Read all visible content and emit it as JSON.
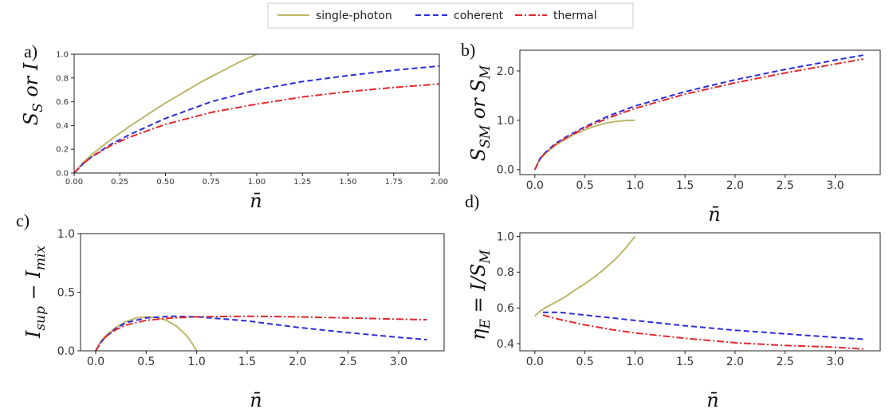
{
  "legend": {
    "entries": [
      {
        "label": "single-photon",
        "color": "#bdb76b",
        "dash": "solid"
      },
      {
        "label": "coherent",
        "color": "#2c2cd8",
        "dash": "dashed"
      },
      {
        "label": "thermal",
        "color": "#e0282e",
        "dash": "dashdot"
      }
    ]
  },
  "chart_data": [
    {
      "panel": "a)",
      "type": "line",
      "ylabel_main": "S",
      "ylabel_sub": "S",
      "ylabel_tail": " or I",
      "xlabel": "n̄",
      "xlim": [
        0,
        2
      ],
      "ylim": [
        0,
        1
      ],
      "xticks": [
        0,
        0.25,
        0.5,
        0.75,
        1.0,
        1.25,
        1.5,
        1.75,
        2.0
      ],
      "xtick_labels": [
        "0.00",
        "0.25",
        "0.50",
        "0.75",
        "1.00",
        "1.25",
        "1.50",
        "1.75",
        "2.00"
      ],
      "yticks": [
        0,
        0.2,
        0.4,
        0.6,
        0.8,
        1.0
      ],
      "ytick_labels": [
        "0.0",
        "0.2",
        "0.4",
        "0.6",
        "0.8",
        "1.0"
      ],
      "series": [
        {
          "name": "single-photon",
          "x": [
            0,
            0.05,
            0.1,
            0.2,
            0.3,
            0.4,
            0.5,
            0.6,
            0.7,
            0.8,
            0.9,
            1.0
          ],
          "y": [
            0,
            0.09,
            0.16,
            0.28,
            0.39,
            0.49,
            0.59,
            0.68,
            0.77,
            0.85,
            0.93,
            1.0
          ]
        },
        {
          "name": "coherent",
          "x": [
            0,
            0.05,
            0.1,
            0.2,
            0.3,
            0.5,
            0.75,
            1.0,
            1.25,
            1.5,
            1.75,
            2.0
          ],
          "y": [
            0,
            0.08,
            0.14,
            0.24,
            0.32,
            0.46,
            0.6,
            0.7,
            0.77,
            0.82,
            0.865,
            0.9
          ]
        },
        {
          "name": "thermal",
          "x": [
            0,
            0.05,
            0.1,
            0.2,
            0.3,
            0.5,
            0.75,
            1.0,
            1.25,
            1.5,
            1.75,
            2.0
          ],
          "y": [
            0,
            0.08,
            0.14,
            0.23,
            0.3,
            0.41,
            0.51,
            0.58,
            0.64,
            0.685,
            0.72,
            0.75
          ]
        }
      ]
    },
    {
      "panel": "b)",
      "type": "line",
      "ylabel_main": "S",
      "ylabel_sub": "SM",
      "ylabel_tail": " or S",
      "ylabel_sub2": "M",
      "xlabel": "n̄",
      "xlim": [
        -0.15,
        3.45
      ],
      "ylim": [
        -0.1,
        2.42
      ],
      "xticks": [
        0,
        0.5,
        1.0,
        1.5,
        2.0,
        2.5,
        3.0
      ],
      "xtick_labels": [
        "0.0",
        "0.5",
        "1.0",
        "1.5",
        "2.0",
        "2.5",
        "3.0"
      ],
      "yticks": [
        0,
        1.0,
        2.0
      ],
      "ytick_labels": [
        "0.0",
        "1.0",
        "2.0"
      ],
      "series": [
        {
          "name": "single-photon",
          "x": [
            0,
            0.05,
            0.1,
            0.2,
            0.3,
            0.4,
            0.5,
            0.6,
            0.7,
            0.8,
            0.9,
            1.0
          ],
          "y": [
            0,
            0.21,
            0.32,
            0.49,
            0.61,
            0.72,
            0.81,
            0.88,
            0.94,
            0.975,
            0.995,
            1.0
          ]
        },
        {
          "name": "coherent",
          "x": [
            0,
            0.05,
            0.1,
            0.2,
            0.3,
            0.5,
            0.75,
            1.0,
            1.5,
            2.0,
            2.5,
            3.0,
            3.28
          ],
          "y": [
            0,
            0.22,
            0.34,
            0.52,
            0.65,
            0.87,
            1.1,
            1.29,
            1.58,
            1.82,
            2.03,
            2.22,
            2.32
          ]
        },
        {
          "name": "thermal",
          "x": [
            0,
            0.05,
            0.1,
            0.2,
            0.3,
            0.5,
            0.75,
            1.0,
            1.5,
            2.0,
            2.5,
            3.0,
            3.28
          ],
          "y": [
            0,
            0.22,
            0.33,
            0.5,
            0.63,
            0.85,
            1.06,
            1.24,
            1.53,
            1.76,
            1.96,
            2.14,
            2.24
          ]
        }
      ]
    },
    {
      "panel": "c)",
      "type": "line",
      "ylabel_main": "I",
      "ylabel_sub": "sup",
      "ylabel_tail": " − I",
      "ylabel_sub2": "mix",
      "xlabel": "n̄",
      "xlim": [
        -0.15,
        3.45
      ],
      "ylim": [
        0,
        1
      ],
      "xticks": [
        0,
        0.5,
        1.0,
        1.5,
        2.0,
        2.5,
        3.0
      ],
      "xtick_labels": [
        "0.0",
        "0.5",
        "1.0",
        "1.5",
        "2.0",
        "2.5",
        "3.0"
      ],
      "yticks": [
        0,
        0.5,
        1.0
      ],
      "ytick_labels": [
        "0.0",
        "0.5",
        "1.0"
      ],
      "series": [
        {
          "name": "single-photon",
          "x": [
            0,
            0.05,
            0.1,
            0.2,
            0.3,
            0.4,
            0.5,
            0.6,
            0.7,
            0.8,
            0.9,
            0.95,
            1.0
          ],
          "y": [
            0,
            0.08,
            0.13,
            0.2,
            0.25,
            0.28,
            0.29,
            0.285,
            0.26,
            0.21,
            0.13,
            0.07,
            0
          ]
        },
        {
          "name": "coherent",
          "x": [
            0,
            0.05,
            0.1,
            0.2,
            0.3,
            0.5,
            0.75,
            1.0,
            1.5,
            2.0,
            2.5,
            3.0,
            3.28
          ],
          "y": [
            0,
            0.07,
            0.12,
            0.19,
            0.24,
            0.28,
            0.295,
            0.29,
            0.255,
            0.2,
            0.155,
            0.115,
            0.095
          ]
        },
        {
          "name": "thermal",
          "x": [
            0,
            0.05,
            0.1,
            0.2,
            0.3,
            0.5,
            0.75,
            1.0,
            1.5,
            2.0,
            2.5,
            3.0,
            3.28
          ],
          "y": [
            0,
            0.07,
            0.12,
            0.18,
            0.22,
            0.26,
            0.28,
            0.29,
            0.295,
            0.29,
            0.28,
            0.27,
            0.265
          ]
        }
      ]
    },
    {
      "panel": "d)",
      "type": "line",
      "ylabel_main": "η",
      "ylabel_sub": "E",
      "ylabel_tail": " = I/S",
      "ylabel_sub2": "M",
      "xlabel": "n̄",
      "xlim": [
        -0.15,
        3.45
      ],
      "ylim": [
        0.36,
        1.02
      ],
      "xticks": [
        0,
        0.5,
        1.0,
        1.5,
        2.0,
        2.5,
        3.0
      ],
      "xtick_labels": [
        "0.0",
        "0.5",
        "1.0",
        "1.5",
        "2.0",
        "2.5",
        "3.0"
      ],
      "yticks": [
        0.4,
        0.6,
        0.8,
        1.0
      ],
      "ytick_labels": [
        "0.4",
        "0.6",
        "0.8",
        "1.0"
      ],
      "series": [
        {
          "name": "single-photon",
          "x": [
            0,
            0.05,
            0.1,
            0.2,
            0.3,
            0.4,
            0.5,
            0.6,
            0.7,
            0.8,
            0.9,
            1.0
          ],
          "y": [
            0.555,
            0.58,
            0.6,
            0.63,
            0.66,
            0.7,
            0.735,
            0.775,
            0.82,
            0.87,
            0.93,
            1.0
          ]
        },
        {
          "name": "coherent",
          "x": [
            0.08,
            0.25,
            0.5,
            0.75,
            1.0,
            1.5,
            2.0,
            2.5,
            3.0,
            3.28
          ],
          "y": [
            0.575,
            0.575,
            0.56,
            0.545,
            0.53,
            0.5,
            0.475,
            0.455,
            0.435,
            0.425
          ]
        },
        {
          "name": "thermal",
          "x": [
            0.08,
            0.25,
            0.5,
            0.75,
            1.0,
            1.5,
            2.0,
            2.5,
            3.0,
            3.28
          ],
          "y": [
            0.56,
            0.535,
            0.505,
            0.48,
            0.46,
            0.43,
            0.405,
            0.39,
            0.38,
            0.37
          ]
        }
      ]
    }
  ]
}
